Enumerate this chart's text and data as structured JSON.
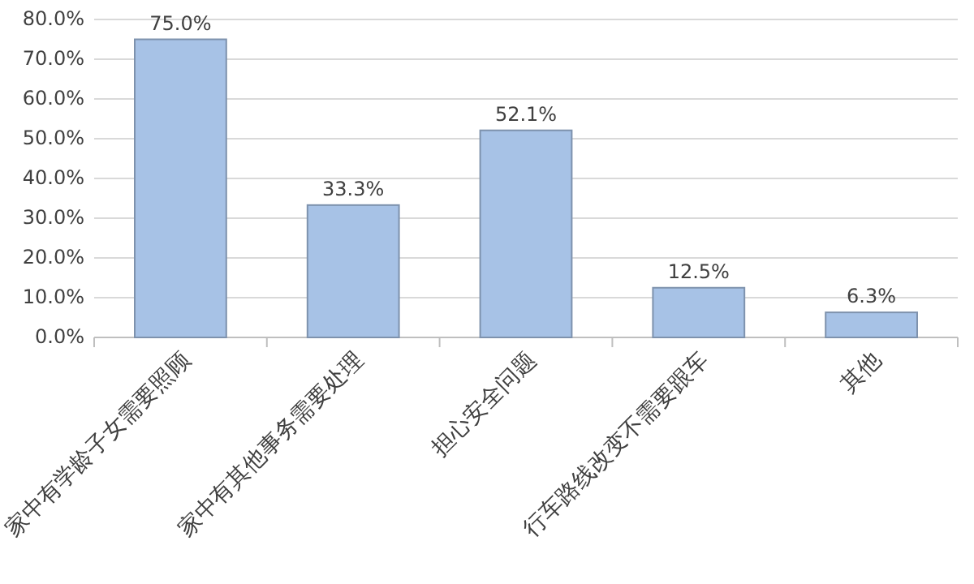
{
  "chart_data": {
    "type": "bar",
    "categories": [
      "家中有学龄子女需要照顾",
      "家中有其他事务需要处理",
      "担心安全问题",
      "行车路线改变不需要跟车",
      "其他"
    ],
    "values": [
      75.0,
      33.3,
      52.1,
      12.5,
      6.3
    ],
    "value_labels": [
      "75.0%",
      "33.3%",
      "52.1%",
      "12.5%",
      "6.3%"
    ],
    "color": "#a7c2e6",
    "ylim": [
      0,
      80
    ],
    "yticks": [
      {
        "value": 0,
        "label": "0.0%"
      },
      {
        "value": 10,
        "label": "10.0%"
      },
      {
        "value": 20,
        "label": "20.0%"
      },
      {
        "value": 30,
        "label": "30.0%"
      },
      {
        "value": 40,
        "label": "40.0%"
      },
      {
        "value": 50,
        "label": "50.0%"
      },
      {
        "value": 60,
        "label": "60.0%"
      },
      {
        "value": 70,
        "label": "70.0%"
      },
      {
        "value": 80,
        "label": "80.0%"
      }
    ],
    "grid": "y"
  }
}
